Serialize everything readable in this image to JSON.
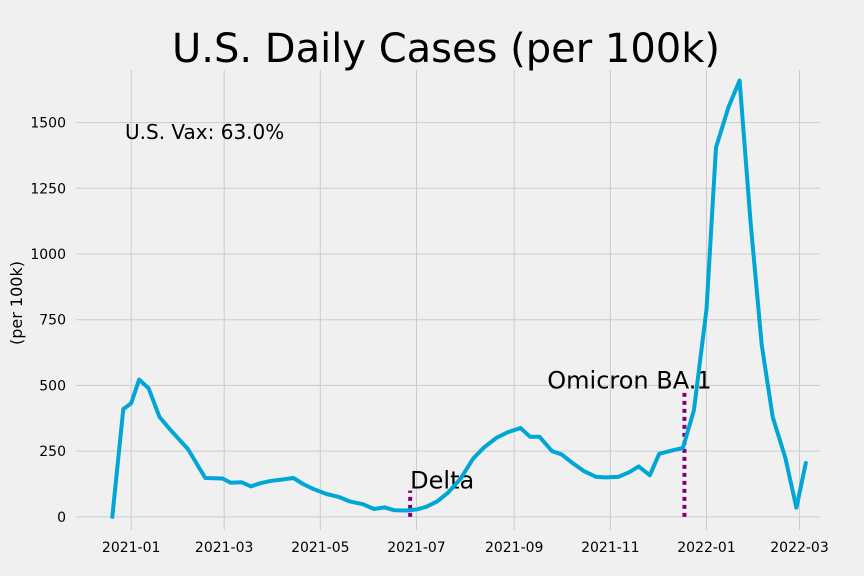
{
  "chart_data": {
    "type": "line",
    "title": "U.S. Daily Cases (per 100k)",
    "xlabel": "",
    "ylabel": "(per 100k)",
    "ylim": [
      -50,
      1700
    ],
    "xlim": [
      "2020-11-27",
      "2022-03-14"
    ],
    "grid": true,
    "y_ticks": [
      0,
      250,
      500,
      750,
      1000,
      1250,
      1500
    ],
    "x_ticks": [
      "2021-01",
      "2021-03",
      "2021-05",
      "2021-07",
      "2021-09",
      "2021-11",
      "2022-01",
      "2022-03"
    ],
    "line_color": "#00a6d6",
    "series": [
      {
        "x": [
          "2020-12-20",
          "2020-12-27",
          "2021-01-01",
          "2021-01-06",
          "2021-01-12",
          "2021-01-19",
          "2021-01-26",
          "2021-02-06",
          "2021-02-17",
          "2021-02-28",
          "2021-03-05",
          "2021-03-12",
          "2021-03-18",
          "2021-03-24",
          "2021-03-31",
          "2021-04-07",
          "2021-04-14",
          "2021-04-20",
          "2021-04-27",
          "2021-05-05",
          "2021-05-13",
          "2021-05-20",
          "2021-05-28",
          "2021-06-04",
          "2021-06-11",
          "2021-06-17",
          "2021-06-25",
          "2021-07-01",
          "2021-07-07",
          "2021-07-14",
          "2021-07-21",
          "2021-07-29",
          "2021-08-06",
          "2021-08-13",
          "2021-08-21",
          "2021-08-28",
          "2021-09-05",
          "2021-09-11",
          "2021-09-17",
          "2021-09-25",
          "2021-10-01",
          "2021-10-08",
          "2021-10-15",
          "2021-10-23",
          "2021-10-29",
          "2021-11-06",
          "2021-11-13",
          "2021-11-19",
          "2021-11-26",
          "2021-12-02",
          "2021-12-10",
          "2021-12-17",
          "2021-12-24",
          "2022-01-01",
          "2022-01-07",
          "2022-01-15",
          "2022-01-22",
          "2022-01-29",
          "2022-02-05",
          "2022-02-12",
          "2022-02-20",
          "2022-02-27",
          "2022-03-05"
        ],
        "values": [
          0,
          410,
          432,
          522,
          490,
          380,
          330,
          258,
          148,
          146,
          130,
          132,
          116,
          128,
          137,
          142,
          148,
          125,
          105,
          87,
          75,
          58,
          48,
          30,
          36,
          25,
          24,
          28,
          38,
          58,
          92,
          145,
          222,
          265,
          302,
          322,
          338,
          305,
          305,
          250,
          238,
          205,
          175,
          152,
          150,
          152,
          170,
          192,
          158,
          240,
          252,
          262,
          405,
          790,
          1405,
          1560,
          1660,
          1120,
          655,
          380,
          225,
          35,
          205
        ]
      }
    ],
    "annotations": [
      {
        "label": "Delta",
        "x": "2021-06-27",
        "y_top": 100,
        "color": "#800080"
      },
      {
        "label": "Omicron BA.1",
        "x": "2021-12-18",
        "y_top": 480,
        "color": "#800080"
      }
    ],
    "text_note": "U.S. Vax: 63.0%"
  }
}
